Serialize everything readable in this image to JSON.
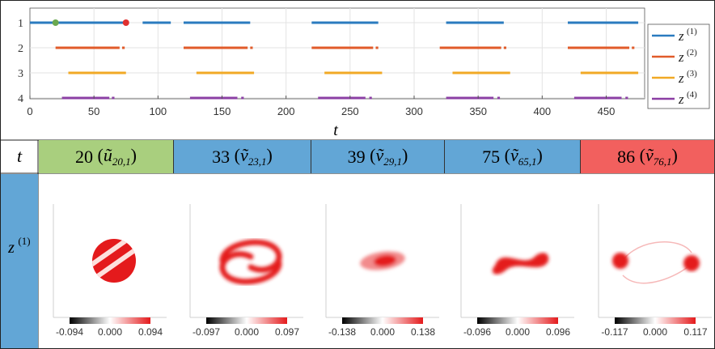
{
  "timeline": {
    "xlabel": "t",
    "xticks": [
      0,
      50,
      100,
      150,
      200,
      250,
      300,
      350,
      400,
      450
    ],
    "xlim": [
      0,
      480
    ],
    "yticks": [
      1,
      2,
      3,
      4
    ],
    "legend": [
      "z(1)",
      "z(2)",
      "z(3)",
      "z(4)"
    ],
    "colors": [
      "#2a7bbf",
      "#e15b2a",
      "#f1a925",
      "#8b3fa4"
    ],
    "markers": [
      {
        "t": 20,
        "row": 1,
        "color": "#6aa84f"
      },
      {
        "t": 75,
        "row": 1,
        "color": "#e03030"
      }
    ],
    "segments": {
      "1": [
        [
          0,
          75
        ],
        [
          88,
          110
        ],
        [
          120,
          172
        ],
        [
          220,
          272
        ],
        [
          325,
          370
        ],
        [
          420,
          475
        ]
      ],
      "2": [
        [
          20,
          70
        ],
        [
          72,
          74
        ],
        [
          120,
          170
        ],
        [
          172,
          174
        ],
        [
          220,
          268
        ],
        [
          270,
          272
        ],
        [
          320,
          368
        ],
        [
          370,
          372
        ],
        [
          420,
          468
        ],
        [
          470,
          472
        ]
      ],
      "3": [
        [
          30,
          75
        ],
        [
          130,
          175
        ],
        [
          230,
          275
        ],
        [
          330,
          375
        ],
        [
          430,
          475
        ]
      ],
      "4": [
        [
          25,
          62
        ],
        [
          64,
          66
        ],
        [
          125,
          162
        ],
        [
          165,
          167
        ],
        [
          225,
          262
        ],
        [
          265,
          267
        ],
        [
          325,
          362
        ],
        [
          365,
          367
        ],
        [
          425,
          462
        ],
        [
          465,
          467
        ]
      ]
    }
  },
  "table": {
    "t_label": "t",
    "row_label": "z(1)",
    "columns": [
      {
        "value": "20",
        "symbol": "ũ",
        "sub": "20,1",
        "bg": "#a9cf7e"
      },
      {
        "value": "33",
        "symbol": "ṽ",
        "sub": "23,1",
        "bg": "#62a6d6"
      },
      {
        "value": "39",
        "symbol": "ṽ",
        "sub": "29,1",
        "bg": "#62a6d6"
      },
      {
        "value": "75",
        "symbol": "ṽ",
        "sub": "65,1",
        "bg": "#62a6d6"
      },
      {
        "value": "86",
        "symbol": "ṽ",
        "sub": "76,1",
        "bg": "#f2605e"
      }
    ],
    "colorbars": [
      [
        "-0.094",
        "0.000",
        "0.094"
      ],
      [
        "-0.097",
        "0.000",
        "0.097"
      ],
      [
        "-0.138",
        "0.000",
        "0.138"
      ],
      [
        "-0.096",
        "0.000",
        "0.096"
      ],
      [
        "-0.117",
        "0.000",
        "0.117"
      ]
    ]
  }
}
